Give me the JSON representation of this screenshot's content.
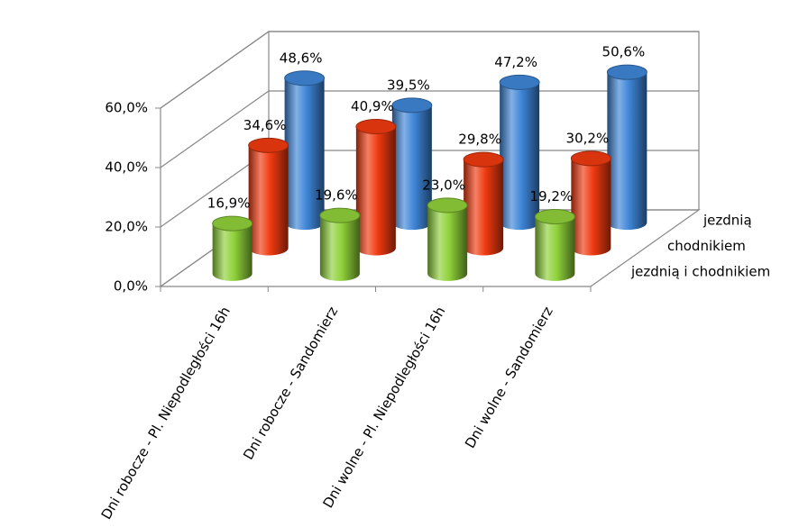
{
  "chart_data": {
    "type": "bar3d",
    "categories": [
      "Dni robocze - Pl. Niepodległości 16h",
      "Dni robocze - Sandomierz",
      "Dni wolne - Pl. Niepodległości 16h",
      "Dni wolne - Sandomierz"
    ],
    "series": [
      {
        "name": "jezdnią i chodnikiem",
        "color": "#8fd13a",
        "values": [
          16.9,
          19.6,
          23.0,
          19.2
        ],
        "value_labels": [
          "16,9%",
          "19,6%",
          "23,0%",
          "19,2%"
        ]
      },
      {
        "name": "chodnikiem",
        "color": "#f03a10",
        "values": [
          34.6,
          40.9,
          29.8,
          30.2
        ],
        "value_labels": [
          "34,6%",
          "40,9%",
          "29,8%",
          "30,2%"
        ]
      },
      {
        "name": "jezdnią",
        "color": "#3f86d8",
        "values": [
          48.6,
          39.5,
          47.2,
          50.6
        ],
        "value_labels": [
          "48,6%",
          "39,5%",
          "47,2%",
          "50,6%"
        ]
      }
    ],
    "ylim": [
      0,
      60
    ],
    "yticks": [
      {
        "value": 0,
        "label": "0,0%"
      },
      {
        "value": 20,
        "label": "20,0%"
      },
      {
        "value": 40,
        "label": "40,0%"
      },
      {
        "value": 60,
        "label": "60,0%"
      }
    ],
    "grid": true
  }
}
